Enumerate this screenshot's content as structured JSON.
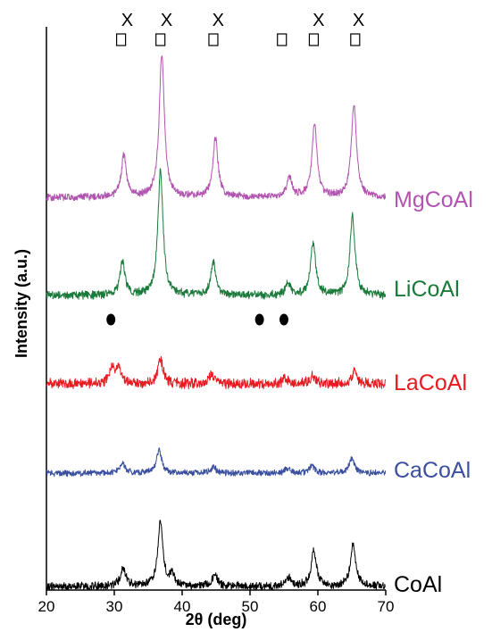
{
  "chart_data": {
    "type": "line",
    "xlabel": "2θ (deg)",
    "ylabel": "Intensity (a.u.)",
    "xlim": [
      20,
      70
    ],
    "xticks": [
      20,
      30,
      40,
      50,
      60,
      70
    ],
    "grid": false,
    "series": [
      {
        "name": "CoAl",
        "color": "#000000",
        "peaks": [
          [
            31.3,
            0.18
          ],
          [
            36.8,
            0.62
          ],
          [
            38.5,
            0.1
          ],
          [
            44.8,
            0.12
          ],
          [
            55.7,
            0.08
          ],
          [
            59.4,
            0.35
          ],
          [
            65.2,
            0.42
          ]
        ]
      },
      {
        "name": "CaCoAl",
        "color": "#3a4fa0",
        "peaks": [
          [
            31.2,
            0.14
          ],
          [
            36.6,
            0.33
          ],
          [
            44.6,
            0.09
          ],
          [
            55.5,
            0.06
          ],
          [
            59.1,
            0.1
          ],
          [
            65.0,
            0.21
          ]
        ]
      },
      {
        "name": "LaCoAl",
        "color": "#e8191f",
        "peaks": [
          [
            29.6,
            0.22
          ],
          [
            30.6,
            0.22
          ],
          [
            36.8,
            0.34
          ],
          [
            44.4,
            0.14
          ],
          [
            55.2,
            0.07
          ],
          [
            59.2,
            0.12
          ],
          [
            65.4,
            0.16
          ]
        ]
      },
      {
        "name": "LiCoAl",
        "color": "#1a7a3a",
        "peaks": [
          [
            31.2,
            0.27
          ],
          [
            36.8,
            1.0
          ],
          [
            44.6,
            0.26
          ],
          [
            55.6,
            0.09
          ],
          [
            59.3,
            0.42
          ],
          [
            65.1,
            0.63
          ]
        ]
      },
      {
        "name": "MgCoAl",
        "color": "#b054b0",
        "peaks": [
          [
            31.4,
            0.29
          ],
          [
            37.0,
            1.0
          ],
          [
            44.9,
            0.41
          ],
          [
            55.8,
            0.14
          ],
          [
            59.5,
            0.5
          ],
          [
            65.3,
            0.65
          ]
        ]
      }
    ],
    "annotations": {
      "square_x": [
        31.0,
        36.8,
        44.6,
        54.7,
        59.4,
        65.5
      ],
      "x_marker_label": "X",
      "x_marker_x": [
        31.9,
        37.7,
        45.3,
        60.1,
        66.0
      ],
      "circle_x": [
        29.5,
        51.4,
        55.0
      ]
    }
  }
}
